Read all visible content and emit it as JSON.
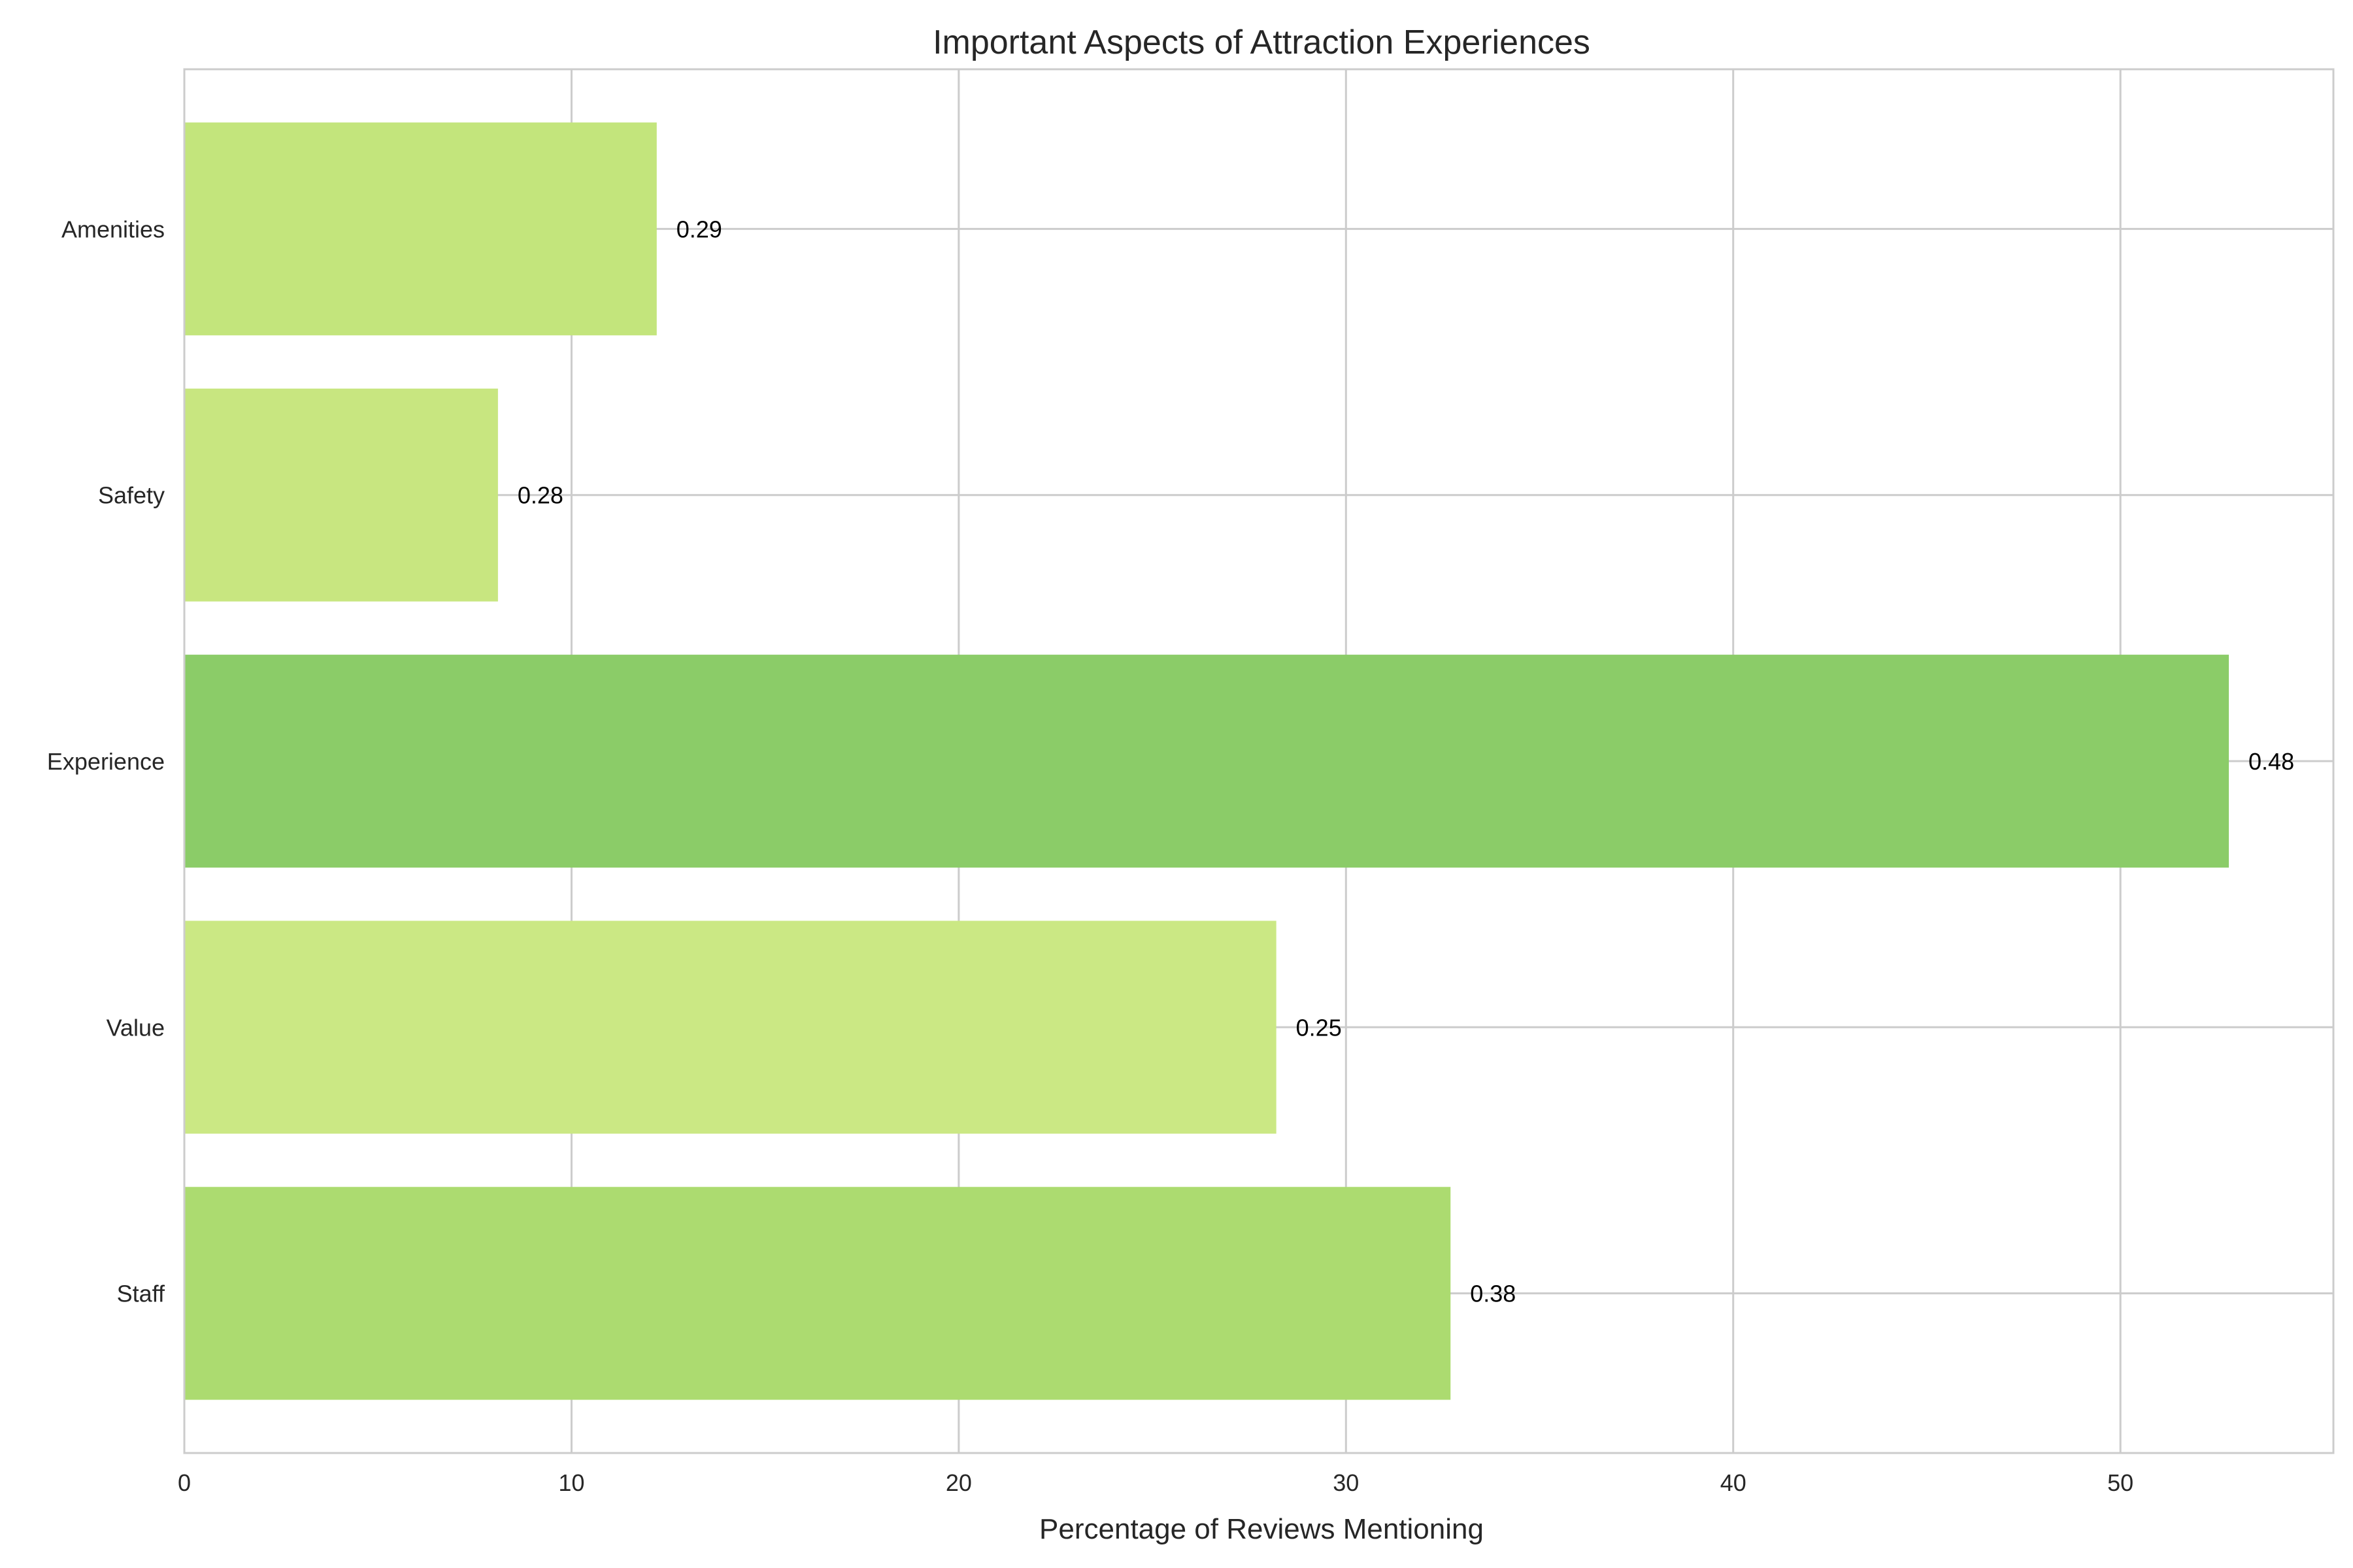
{
  "chart_data": {
    "type": "bar",
    "orientation": "horizontal",
    "title": "Important Aspects of Attraction Experiences",
    "xlabel": "Percentage of Reviews Mentioning",
    "ylabel": "",
    "xlim": [
      0,
      55.5
    ],
    "xticks": [
      0,
      10,
      20,
      30,
      40,
      50
    ],
    "grid": true,
    "categories": [
      "Staff",
      "Value",
      "Experience",
      "Safety",
      "Amenities"
    ],
    "values": [
      32.7,
      28.2,
      52.8,
      8.1,
      12.2
    ],
    "value_labels": [
      "0.38",
      "0.25",
      "0.48",
      "0.28",
      "0.29"
    ],
    "bar_colors": [
      "#acdb70",
      "#cbe884",
      "#8bcc68",
      "#c8e680",
      "#c3e57c"
    ]
  }
}
